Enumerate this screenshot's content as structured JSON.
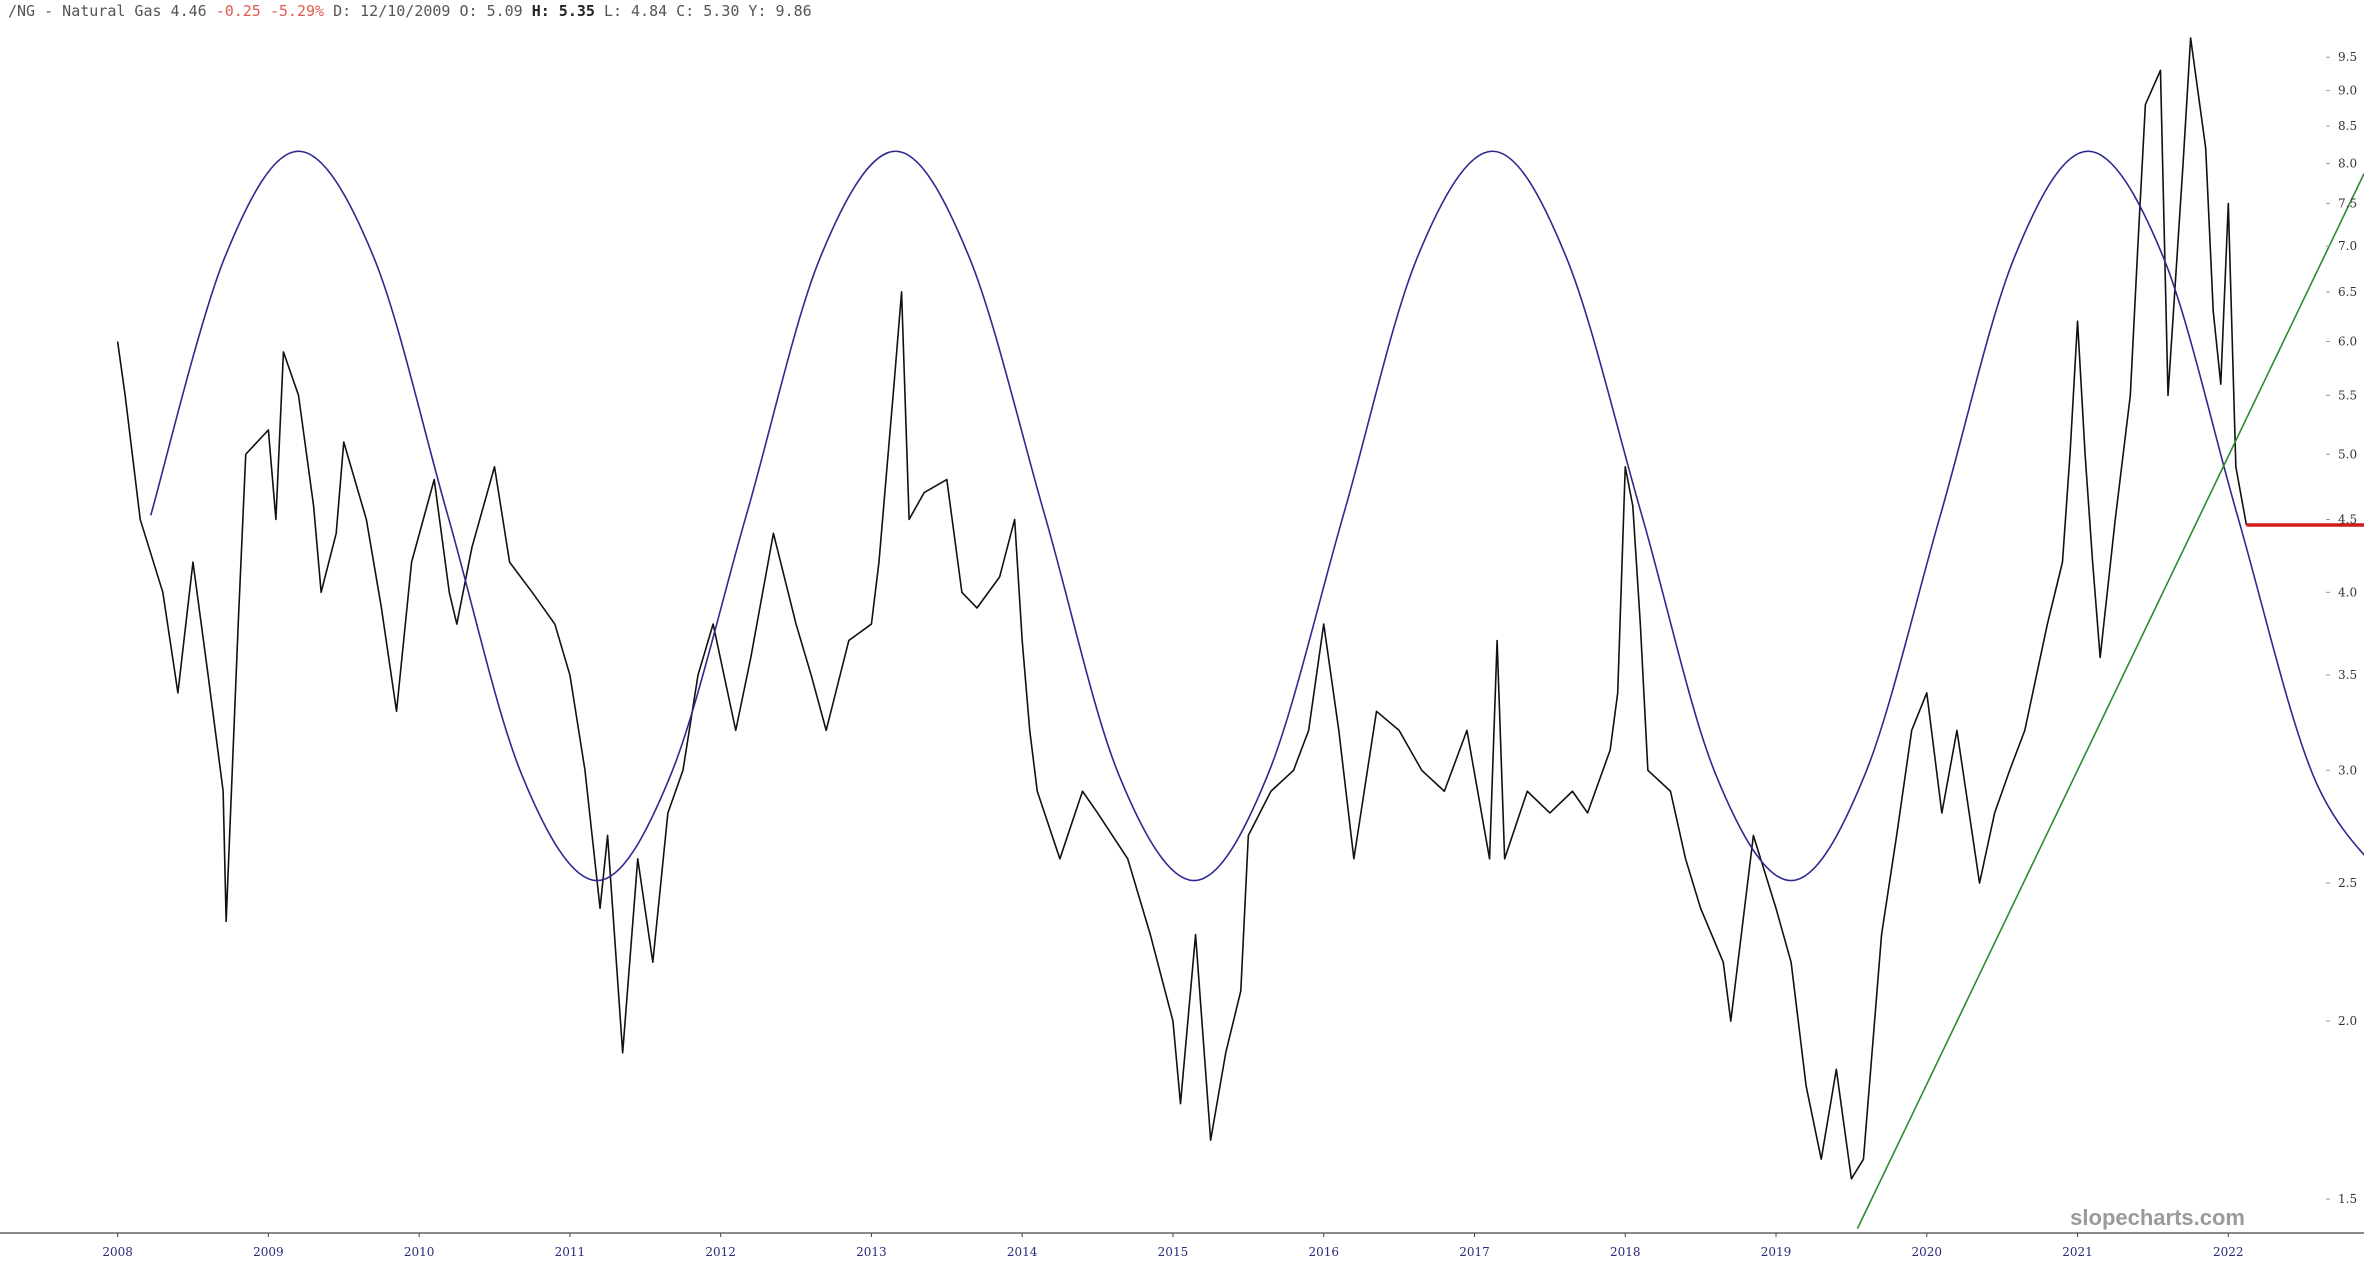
{
  "chart_data": {
    "type": "line",
    "header": [
      {
        "text": "/NG - Natural Gas 4.46",
        "color": "#555555",
        "bold": false
      },
      {
        "text": "-0.25 -5.29%",
        "color": "#e05a4f",
        "bold": false
      },
      {
        "text": "D: 12/10/2009 O: 5.09",
        "color": "#555555",
        "bold": false
      },
      {
        "text": "H: 5.35",
        "color": "#222222",
        "bold": true
      },
      {
        "text": "L: 4.84 C: 5.30 Y: 9.86",
        "color": "#555555",
        "bold": false
      }
    ],
    "watermark": "slopecharts.com",
    "log_scale": true,
    "xlim": [
      2007.22,
      2022.9
    ],
    "xticks": [
      2008,
      2009,
      2010,
      2011,
      2012,
      2013,
      2014,
      2015,
      2016,
      2017,
      2018,
      2019,
      2020,
      2021,
      2022
    ],
    "ylim": [
      1.42,
      10.42
    ],
    "yticks": [
      1.5,
      {
        "value": 2,
        "label": "2.0"
      },
      2.5,
      {
        "value": 3,
        "label": "3.0"
      },
      3.5,
      {
        "value": 4,
        "label": "4.0"
      },
      4.5,
      {
        "value": 5,
        "label": "5.0"
      },
      5.5,
      {
        "value": 6,
        "label": "6.0"
      },
      6.5,
      {
        "value": 7,
        "label": "7.0"
      },
      7.5,
      {
        "value": 8,
        "label": "8.0"
      },
      8.5,
      {
        "value": 9,
        "label": "9.0"
      },
      9.5
    ],
    "series": [
      {
        "color": "#111111",
        "width": 1.6,
        "smooth": false,
        "x": [
          2008.0,
          2008.05,
          2008.15,
          2008.3,
          2008.4,
          2008.5,
          2008.6,
          2008.7,
          2008.72,
          2008.8,
          2008.85,
          2009.0,
          2009.05,
          2009.1,
          2009.2,
          2009.3,
          2009.35,
          2009.45,
          2009.5,
          2009.65,
          2009.75,
          2009.85,
          2009.95,
          2010.1,
          2010.2,
          2010.25,
          2010.35,
          2010.5,
          2010.6,
          2010.75,
          2010.9,
          2011.0,
          2011.1,
          2011.2,
          2011.25,
          2011.35,
          2011.45,
          2011.55,
          2011.65,
          2011.75,
          2011.85,
          2011.95,
          2012.1,
          2012.2,
          2012.35,
          2012.5,
          2012.6,
          2012.7,
          2012.85,
          2013.0,
          2013.05,
          2013.15,
          2013.2,
          2013.25,
          2013.35,
          2013.5,
          2013.6,
          2013.7,
          2013.85,
          2013.95,
          2014.0,
          2014.05,
          2014.1,
          2014.25,
          2014.4,
          2014.5,
          2014.7,
          2014.85,
          2015.0,
          2015.05,
          2015.15,
          2015.25,
          2015.35,
          2015.45,
          2015.5,
          2015.65,
          2015.8,
          2015.9,
          2016.0,
          2016.1,
          2016.2,
          2016.35,
          2016.5,
          2016.65,
          2016.8,
          2016.95,
          2017.1,
          2017.15,
          2017.2,
          2017.35,
          2017.5,
          2017.65,
          2017.75,
          2017.9,
          2017.95,
          2018.0,
          2018.05,
          2018.1,
          2018.15,
          2018.3,
          2018.4,
          2018.5,
          2018.65,
          2018.7,
          2018.85,
          2019.0,
          2019.1,
          2019.2,
          2019.3,
          2019.4,
          2019.5,
          2019.58,
          2019.7,
          2019.8,
          2019.9,
          2020.0,
          2020.1,
          2020.2,
          2020.35,
          2020.45,
          2020.55,
          2020.65,
          2020.8,
          2020.9,
          2020.95,
          2021.0,
          2021.05,
          2021.1,
          2021.15,
          2021.25,
          2021.35,
          2021.4,
          2021.45,
          2021.55,
          2021.6,
          2021.7,
          2021.75,
          2021.85,
          2021.9,
          2021.95,
          2022.0,
          2022.05,
          2022.12
        ],
        "values": [
          6.0,
          5.5,
          4.5,
          4.0,
          3.4,
          4.2,
          3.5,
          2.9,
          2.35,
          3.8,
          5.0,
          5.2,
          4.5,
          5.9,
          5.5,
          4.6,
          4.0,
          4.4,
          5.1,
          4.5,
          3.9,
          3.3,
          4.2,
          4.8,
          4.0,
          3.8,
          4.3,
          4.9,
          4.2,
          4.0,
          3.8,
          3.5,
          3.0,
          2.4,
          2.7,
          1.9,
          2.6,
          2.2,
          2.8,
          3.0,
          3.5,
          3.8,
          3.2,
          3.6,
          4.4,
          3.8,
          3.5,
          3.2,
          3.7,
          3.8,
          4.2,
          5.6,
          6.5,
          4.5,
          4.7,
          4.8,
          4.0,
          3.9,
          4.1,
          4.5,
          3.7,
          3.2,
          2.9,
          2.6,
          2.9,
          2.8,
          2.6,
          2.3,
          2.0,
          1.75,
          2.3,
          1.65,
          1.9,
          2.1,
          2.7,
          2.9,
          3.0,
          3.2,
          3.8,
          3.2,
          2.6,
          3.3,
          3.2,
          3.0,
          2.9,
          3.2,
          2.6,
          3.7,
          2.6,
          2.9,
          2.8,
          2.9,
          2.8,
          3.1,
          3.4,
          4.9,
          4.6,
          3.8,
          3.0,
          2.9,
          2.6,
          2.4,
          2.2,
          2.0,
          2.7,
          2.4,
          2.2,
          1.8,
          1.6,
          1.85,
          1.55,
          1.6,
          2.3,
          2.7,
          3.2,
          3.4,
          2.8,
          3.2,
          2.5,
          2.8,
          3.0,
          3.2,
          3.8,
          4.2,
          5.0,
          6.2,
          5.0,
          4.2,
          3.6,
          4.5,
          5.5,
          7.0,
          8.8,
          9.3,
          5.5,
          8.0,
          9.8,
          8.2,
          6.3,
          5.6,
          7.5,
          4.9,
          4.46
        ]
      },
      {
        "color": "#2b2b8f",
        "width": 1.6,
        "smooth": true,
        "x": [
          2008.22,
          2008.71,
          2009.2,
          2009.7,
          2010.19,
          2010.68,
          2011.18,
          2011.67,
          2012.17,
          2012.66,
          2013.16,
          2013.65,
          2014.15,
          2014.64,
          2015.14,
          2015.63,
          2016.13,
          2016.62,
          2017.12,
          2017.61,
          2018.11,
          2018.6,
          2019.1,
          2019.59,
          2020.09,
          2020.58,
          2021.07,
          2021.57,
          2022.06,
          2022.56,
          2023.05
        ],
        "values": [
          4.53,
          6.87,
          8.16,
          6.87,
          4.53,
          2.98,
          2.51,
          2.98,
          4.53,
          6.87,
          8.16,
          6.87,
          4.53,
          2.98,
          2.51,
          2.98,
          4.53,
          6.87,
          8.16,
          6.87,
          4.53,
          2.98,
          2.51,
          2.98,
          4.53,
          6.87,
          8.16,
          6.87,
          4.53,
          2.98,
          2.51
        ]
      },
      {
        "color": "#2e8b2e",
        "width": 1.6,
        "smooth": false,
        "x": [
          2019.54,
          2022.9
        ],
        "values": [
          1.43,
          7.87
        ]
      },
      {
        "color": "#d11a1a",
        "width": 3.5,
        "smooth": false,
        "x": [
          2022.12,
          2022.9
        ],
        "values": [
          4.46,
          4.46
        ]
      }
    ]
  }
}
